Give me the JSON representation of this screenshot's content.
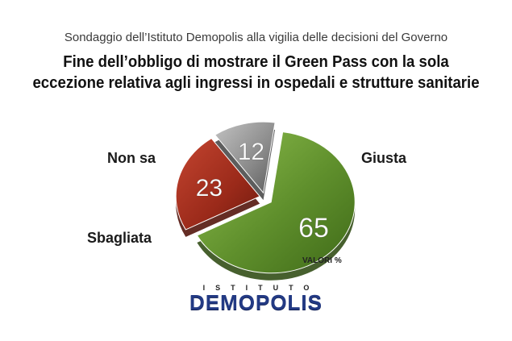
{
  "header": {
    "subtitle": "Sondaggio dell’Istituto Demopolis alla vigilia delle decisioni del Governo",
    "title_line1": "Fine dell’obbligo di mostrare il Green Pass con la sola",
    "title_line2": "eccezione relativa agli ingressi in ospedali e strutture sanitarie"
  },
  "chart_data": {
    "type": "pie",
    "unit_note": "VALORI %",
    "slices": [
      {
        "label": "Giusta",
        "value": 65,
        "color": "#5f8f2c"
      },
      {
        "label": "Sbagliata",
        "value": 23,
        "color": "#9b2a1a"
      },
      {
        "label": "Non sa",
        "value": 12,
        "color": "#8a8a8a"
      }
    ]
  },
  "logo": {
    "top": "ISTITUTO",
    "main": "DEMOPOLIS"
  }
}
